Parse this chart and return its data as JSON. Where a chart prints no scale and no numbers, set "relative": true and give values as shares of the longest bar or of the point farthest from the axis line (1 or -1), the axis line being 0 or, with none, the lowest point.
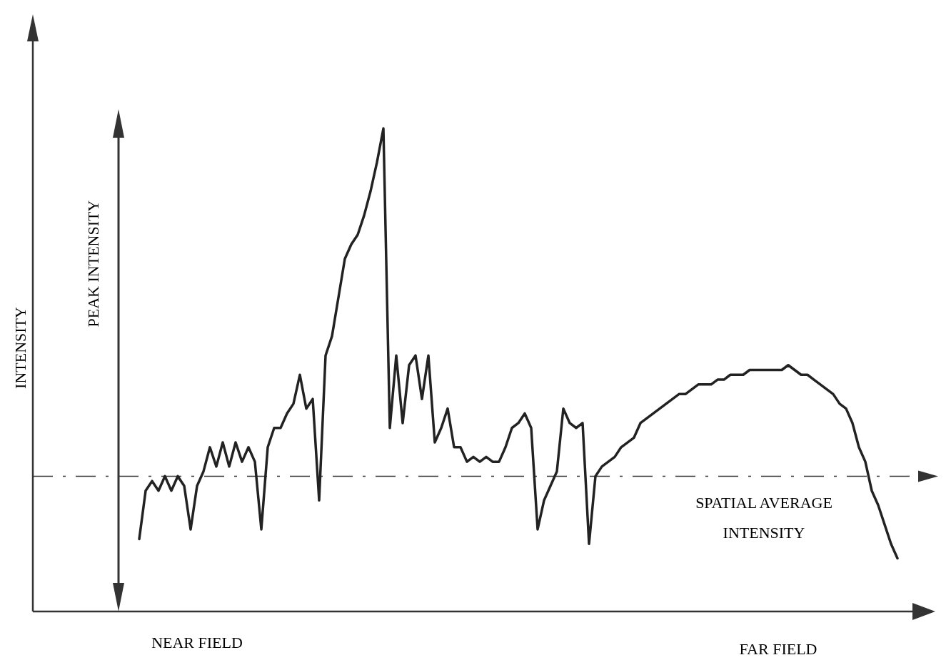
{
  "chart_data": {
    "type": "line",
    "relative": true,
    "categories": [
      null,
      null,
      null,
      null,
      null,
      null,
      null,
      null,
      null,
      null,
      null,
      null,
      null,
      null,
      null,
      null,
      null,
      null,
      null,
      null,
      null,
      null,
      null,
      null,
      null,
      null,
      null,
      null,
      null,
      null,
      null,
      null,
      null,
      null,
      null,
      null,
      null,
      null,
      null,
      null,
      null,
      null,
      null,
      null,
      null,
      null,
      null,
      null,
      null,
      null,
      null,
      null,
      null,
      null,
      null,
      null,
      null,
      null,
      null,
      null,
      null,
      null,
      null,
      null,
      null,
      null,
      null,
      null,
      null,
      null,
      null,
      null,
      null,
      null,
      null,
      null,
      null,
      null,
      null,
      null,
      null,
      null,
      null,
      null,
      null,
      null,
      null,
      null,
      null,
      null,
      null,
      null,
      null,
      null,
      null,
      null,
      null,
      null,
      null,
      null,
      null,
      null,
      null,
      null,
      null,
      null,
      null,
      null,
      null,
      null,
      null,
      null,
      null,
      null,
      null,
      null,
      null,
      null,
      null
    ],
    "series": [
      {
        "color": "#222222",
        "values": [
          0.15,
          0.25,
          0.27,
          0.25,
          0.28,
          0.25,
          0.28,
          0.26,
          0.17,
          0.26,
          0.29,
          0.34,
          0.3,
          0.35,
          0.3,
          0.35,
          0.31,
          0.34,
          0.31,
          0.17,
          0.34,
          0.38,
          0.38,
          0.41,
          0.43,
          0.49,
          0.42,
          0.44,
          0.23,
          0.53,
          0.57,
          0.65,
          0.73,
          0.76,
          0.78,
          0.82,
          0.87,
          0.93,
          1,
          0.38,
          0.53,
          0.39,
          0.51,
          0.53,
          0.44,
          0.53,
          0.35,
          0.38,
          0.42,
          0.34,
          0.34,
          0.31,
          0.32,
          0.31,
          0.32,
          0.31,
          0.31,
          0.34,
          0.38,
          0.39,
          0.41,
          0.38,
          0.17,
          0.23,
          0.26,
          0.29,
          0.42,
          0.39,
          0.38,
          0.39,
          0.14,
          0.28,
          0.3,
          0.31,
          0.32,
          0.34,
          0.35,
          0.36,
          0.39,
          0.4,
          0.41,
          0.42,
          0.43,
          0.44,
          0.45,
          0.45,
          0.46,
          0.47,
          0.47,
          0.47,
          0.48,
          0.48,
          0.49,
          0.49,
          0.49,
          0.5,
          0.5,
          0.5,
          0.5,
          0.5,
          0.5,
          0.51,
          0.5,
          0.49,
          0.49,
          0.48,
          0.47,
          0.46,
          0.45,
          0.43,
          0.42,
          0.39,
          0.34,
          0.31,
          0.25,
          0.22,
          0.18,
          0.14,
          0.11
        ]
      }
    ],
    "ref_lines": [
      {
        "axis": "y",
        "value": 0.28,
        "label": "SPATIAL AVERAGE INTENSITY",
        "line_style": "dashed",
        "color": "#333333"
      }
    ],
    "annotations": [
      "PEAK INTENSITY",
      "NEAR FIELD",
      "FAR FIELD",
      "INTENSITY"
    ],
    "line_style": "solid"
  }
}
